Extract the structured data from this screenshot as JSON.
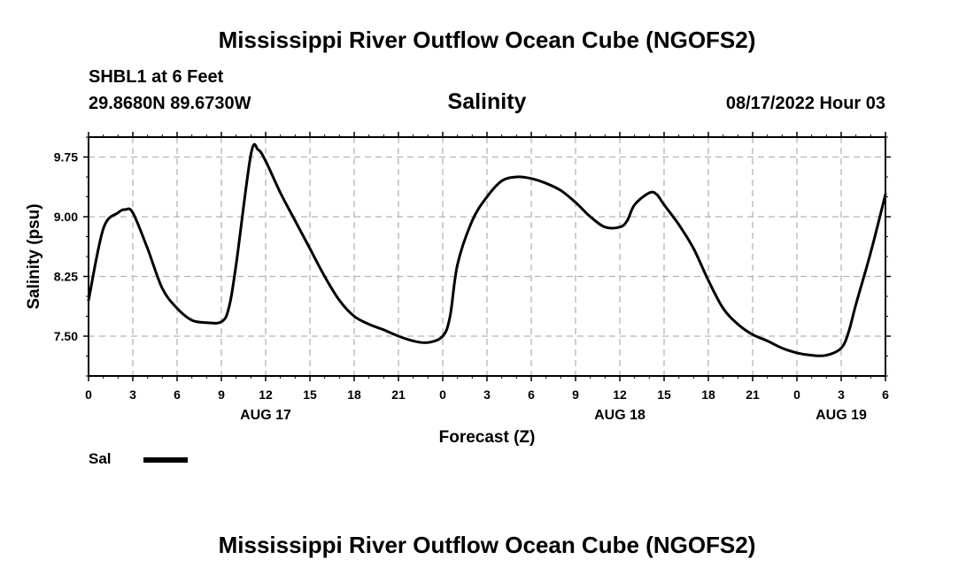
{
  "header": {
    "title": "Mississippi River Outflow Ocean Cube (NGOFS2)",
    "station": "SHBL1 at 6 Feet",
    "coords": "29.8680N  89.6730W",
    "chart_title": "Salinity",
    "datetime": "08/17/2022 Hour 03"
  },
  "footer": {
    "title": "Mississippi River Outflow Ocean Cube (NGOFS2)"
  },
  "legend": {
    "label": "Sal"
  },
  "chart_data": {
    "type": "line",
    "title": "Salinity",
    "xlabel": "Forecast (Z)",
    "ylabel": "Salinity (psu)",
    "x_range_hours": [
      0,
      54
    ],
    "xlim": [
      "08/17/2022 Hour 00",
      "08/19/2022 Hour 06"
    ],
    "ylim": [
      7.0,
      10.0
    ],
    "grid": true,
    "legend_position": "bottom-left",
    "x_ticks": [
      "0",
      "3",
      "6",
      "9",
      "12",
      "15",
      "18",
      "21",
      "0",
      "3",
      "6",
      "9",
      "12",
      "15",
      "18",
      "21",
      "0",
      "3",
      "6"
    ],
    "day_labels": [
      {
        "label": "AUG 17",
        "hour": 12
      },
      {
        "label": "AUG 18",
        "hour": 36
      },
      {
        "label": "AUG 19",
        "hour": 51
      }
    ],
    "y_ticks": [
      "7.50",
      "8.25",
      "9.00",
      "9.75"
    ],
    "series": [
      {
        "name": "Sal",
        "color": "#000000",
        "x": [
          0,
          1,
          2,
          2.5,
          3,
          4,
          5,
          6,
          7,
          8,
          9,
          9.5,
          10,
          11,
          11.5,
          12,
          13,
          14,
          15,
          16,
          17,
          18,
          19,
          20,
          21,
          22,
          23,
          24,
          24.5,
          25,
          26,
          27,
          28,
          29,
          30,
          31,
          32,
          33,
          34,
          35,
          36,
          36.5,
          37,
          38,
          38.5,
          39,
          40,
          41,
          42,
          43,
          44,
          45,
          46,
          47,
          48,
          49,
          50,
          51,
          51.5,
          52,
          53,
          54
        ],
        "y": [
          7.95,
          8.85,
          9.05,
          9.09,
          9.05,
          8.6,
          8.1,
          7.85,
          7.7,
          7.67,
          7.68,
          7.85,
          8.4,
          9.78,
          9.84,
          9.7,
          9.3,
          8.95,
          8.6,
          8.25,
          7.95,
          7.75,
          7.65,
          7.58,
          7.5,
          7.44,
          7.42,
          7.5,
          7.75,
          8.4,
          8.95,
          9.25,
          9.45,
          9.5,
          9.48,
          9.42,
          9.33,
          9.18,
          9.0,
          8.87,
          8.87,
          8.95,
          9.15,
          9.3,
          9.28,
          9.15,
          8.9,
          8.6,
          8.2,
          7.85,
          7.65,
          7.52,
          7.44,
          7.35,
          7.29,
          7.26,
          7.26,
          7.35,
          7.55,
          7.9,
          8.55,
          9.28
        ]
      }
    ]
  }
}
